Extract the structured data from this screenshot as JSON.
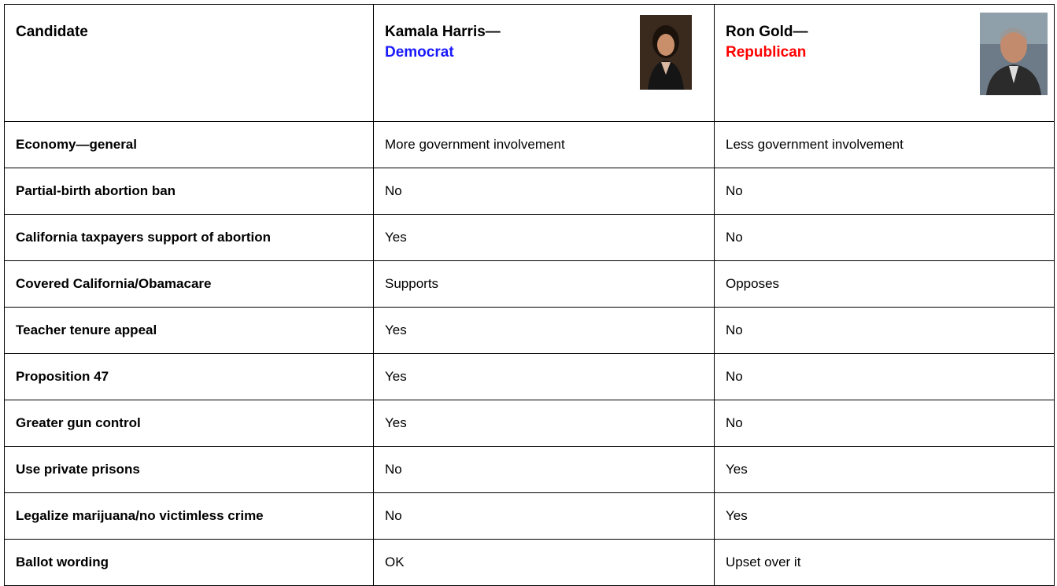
{
  "table": {
    "header": {
      "label": "Candidate",
      "candidates": [
        {
          "name": "Kamala Harris—",
          "party": "Democrat"
        },
        {
          "name": "Ron Gold—",
          "party": "Republican"
        }
      ]
    },
    "rows": [
      [
        "Economy—general",
        "More government involvement",
        "Less government involvement"
      ],
      [
        "Partial-birth abortion ban",
        "No",
        "No"
      ],
      [
        "California taxpayers support of abortion",
        "Yes",
        "No"
      ],
      [
        "Covered California/Obamacare",
        "Supports",
        "Opposes"
      ],
      [
        "Teacher tenure appeal",
        "Yes",
        "No"
      ],
      [
        "Proposition 47",
        "Yes",
        "No"
      ],
      [
        "Greater gun control",
        "Yes",
        "No"
      ],
      [
        "Use private prisons",
        "No",
        "Yes"
      ],
      [
        "Legalize marijuana/no victimless crime",
        "No",
        "Yes"
      ],
      [
        "Ballot wording",
        "OK",
        "Upset over it"
      ]
    ]
  }
}
